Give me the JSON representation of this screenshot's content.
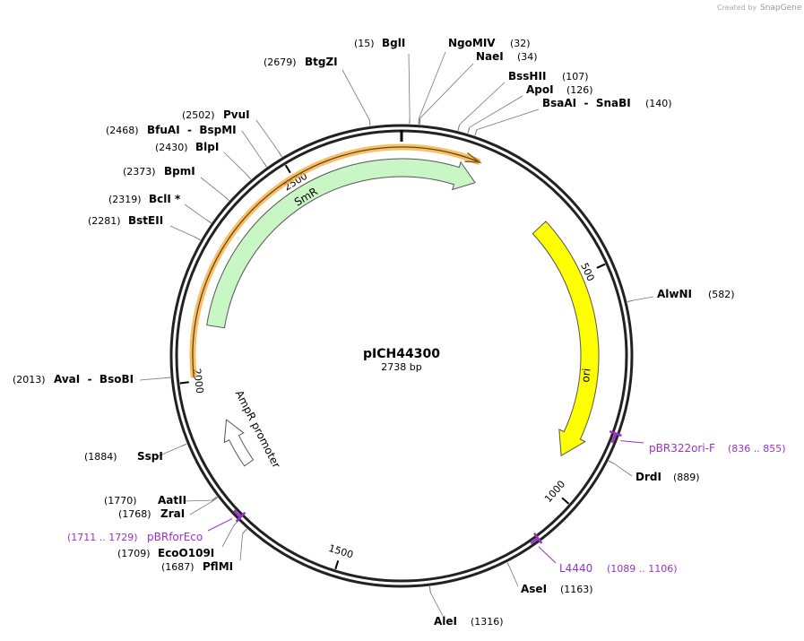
{
  "watermark": {
    "prefix": "Created by",
    "brand": "SnapGene"
  },
  "plasmid": {
    "name": "pICH44300",
    "length": {
      "value": 2738,
      "label": "2738 bp"
    }
  },
  "ruler_ticks": [
    500,
    1000,
    1500,
    2000,
    2500
  ],
  "enzymes": [
    {
      "name": "BglI",
      "site": {
        "value": 15,
        "label": "(15)"
      }
    },
    {
      "name": "NgoMIV",
      "site": {
        "value": 32,
        "label": "(32)"
      }
    },
    {
      "name": "NaeI",
      "site": {
        "value": 34,
        "label": "(34)"
      }
    },
    {
      "name": "BssHII",
      "site": {
        "value": 107,
        "label": "(107)"
      }
    },
    {
      "name": "ApoI",
      "site": {
        "value": 126,
        "label": "(126)"
      }
    },
    {
      "name": "BsaAI  -  SnaBI",
      "site": {
        "value": 140,
        "label": "(140)"
      }
    },
    {
      "name": "AlwNI",
      "site": {
        "value": 582,
        "label": "(582)"
      }
    },
    {
      "name": "DrdI",
      "site": {
        "value": 889,
        "label": "(889)"
      }
    },
    {
      "name": "AseI",
      "site": {
        "value": 1163,
        "label": "(1163)"
      }
    },
    {
      "name": "AleI",
      "site": {
        "value": 1316,
        "label": "(1316)"
      }
    },
    {
      "name": "PflMI",
      "site": {
        "value": 1687,
        "label": "(1687)"
      }
    },
    {
      "name": "EcoO109I",
      "site": {
        "value": 1709,
        "label": "(1709)"
      }
    },
    {
      "name": "ZraI",
      "site": {
        "value": 1768,
        "label": "(1768)"
      }
    },
    {
      "name": "AatII",
      "site": {
        "value": 1770,
        "label": "(1770)"
      }
    },
    {
      "name": "SspI",
      "site": {
        "value": 1884,
        "label": "(1884)"
      }
    },
    {
      "name": "AvaI  -  BsoBI",
      "site": {
        "value": 2013,
        "label": "(2013)"
      }
    },
    {
      "name": "BstEII",
      "site": {
        "value": 2281,
        "label": "(2281)"
      }
    },
    {
      "name": "BclI *",
      "site": {
        "value": 2319,
        "label": "(2319)"
      }
    },
    {
      "name": "BpmI",
      "site": {
        "value": 2373,
        "label": "(2373)"
      }
    },
    {
      "name": "BlpI",
      "site": {
        "value": 2430,
        "label": "(2430)"
      }
    },
    {
      "name": "BfuAI  -  BspMI",
      "site": {
        "value": 2468,
        "label": "(2468)"
      }
    },
    {
      "name": "PvuI",
      "site": {
        "value": 2502,
        "label": "(2502)"
      }
    },
    {
      "name": "BtgZI",
      "site": {
        "value": 2679,
        "label": "(2679)"
      }
    }
  ],
  "features": [
    {
      "name": "SmR",
      "color": "#c8f7c5"
    },
    {
      "name": "ori",
      "color": "#ffff00"
    },
    {
      "name": "AmpR promoter",
      "color": "#ffffff"
    }
  ],
  "primers": [
    {
      "name": "pBR322ori-F",
      "start": 836,
      "end": 855,
      "label": "(836 .. 855)"
    },
    {
      "name": "L4440",
      "start": 1089,
      "end": 1106,
      "label": "(1089 .. 1106)"
    },
    {
      "name": "pBRforEco",
      "start": 1711,
      "end": 1729,
      "label": "(1711 .. 1729)"
    }
  ]
}
